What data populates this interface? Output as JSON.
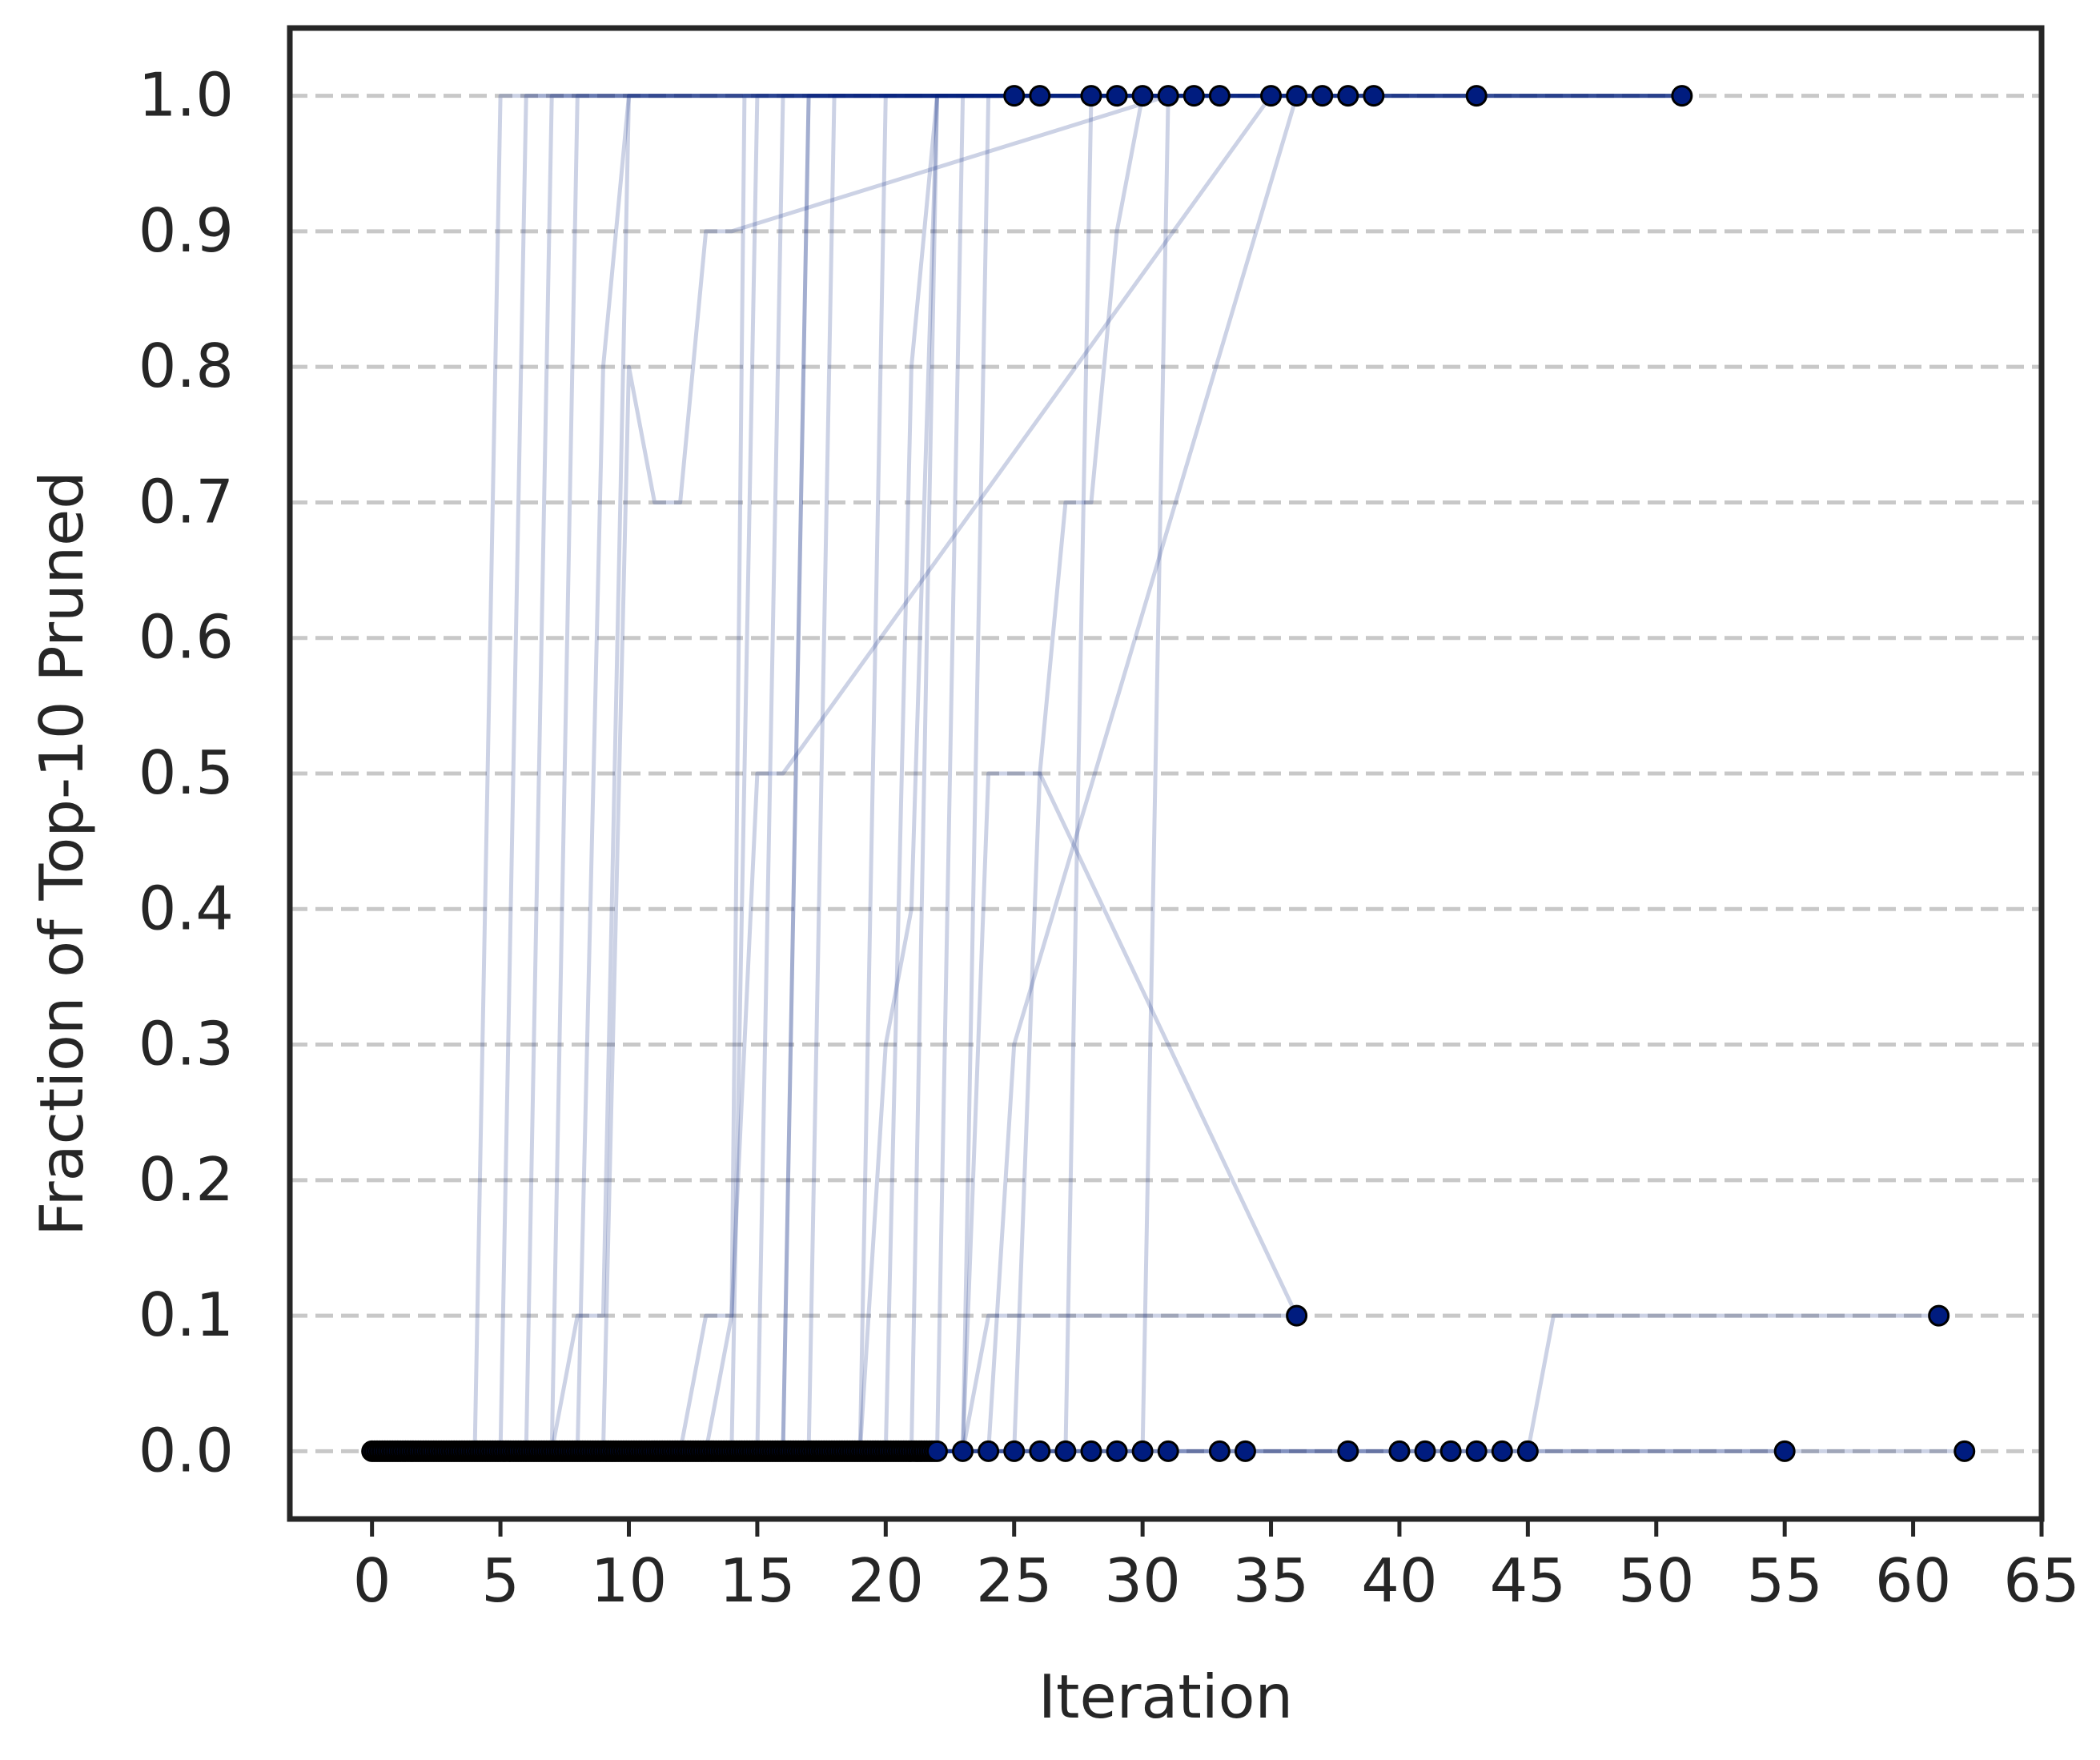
{
  "chart_data": {
    "type": "line",
    "title": "",
    "xlabel": "Iteration",
    "ylabel": "Fraction of Top-10 Pruned",
    "xlim": [
      -3.2,
      65.0
    ],
    "ylim": [
      -0.05,
      1.05
    ],
    "xticks": [
      0,
      5,
      10,
      15,
      20,
      25,
      30,
      35,
      40,
      45,
      50,
      55,
      60,
      65
    ],
    "xtick_labels": [
      "0",
      "5",
      "10",
      "15",
      "20",
      "25",
      "30",
      "35",
      "40",
      "45",
      "50",
      "55",
      "60",
      "65"
    ],
    "yticks": [
      0.0,
      0.1,
      0.2,
      0.3,
      0.4,
      0.5,
      0.6,
      0.7,
      0.8,
      0.9,
      1.0
    ],
    "ytick_labels": [
      "0.0",
      "0.1",
      "0.2",
      "0.3",
      "0.4",
      "0.5",
      "0.6",
      "0.7",
      "0.8",
      "0.9",
      "1.0"
    ],
    "grid": "y-dashed",
    "legend": "none",
    "colors": {
      "line": "#001c7f",
      "grid": "#c8c8c8",
      "axis": "#262626",
      "marker_edge": "#000000"
    },
    "series": [
      {
        "x": [
          0,
          4,
          5,
          25
        ],
        "y": [
          0,
          0,
          1,
          1
        ]
      },
      {
        "x": [
          0,
          5,
          6,
          26
        ],
        "y": [
          0,
          0,
          1,
          1
        ]
      },
      {
        "x": [
          0,
          6,
          7,
          28
        ],
        "y": [
          0,
          0,
          1,
          1
        ]
      },
      {
        "x": [
          0,
          7,
          8,
          29
        ],
        "y": [
          0,
          0,
          1,
          1
        ]
      },
      {
        "x": [
          0,
          7,
          8,
          9,
          10,
          30
        ],
        "y": [
          0,
          0,
          0.1,
          0.1,
          1,
          1
        ]
      },
      {
        "x": [
          0,
          9,
          10,
          11,
          12,
          13,
          14,
          31
        ],
        "y": [
          0,
          0,
          0.8,
          0.7,
          0.7,
          0.9,
          0.9,
          1
        ]
      },
      {
        "x": [
          0,
          8,
          9,
          10,
          32
        ],
        "y": [
          0,
          0,
          0.8,
          1,
          1
        ]
      },
      {
        "x": [
          0,
          12,
          13,
          14,
          14.5,
          33
        ],
        "y": [
          0,
          0,
          0.1,
          0.1,
          1,
          1
        ]
      },
      {
        "x": [
          0,
          14,
          15,
          35
        ],
        "y": [
          0,
          0,
          1,
          1
        ]
      },
      {
        "x": [
          0,
          15,
          16,
          36
        ],
        "y": [
          0,
          0,
          1,
          1
        ]
      },
      {
        "x": [
          0,
          16,
          17,
          37
        ],
        "y": [
          0,
          0,
          1,
          1
        ]
      },
      {
        "x": [
          0,
          16,
          17,
          38
        ],
        "y": [
          0,
          0,
          1,
          1
        ]
      },
      {
        "x": [
          0,
          17,
          18,
          39
        ],
        "y": [
          0,
          0,
          1,
          1
        ]
      },
      {
        "x": [
          0,
          19,
          20,
          43
        ],
        "y": [
          0,
          0,
          1,
          1
        ]
      },
      {
        "x": [
          0,
          20,
          21,
          22,
          51
        ],
        "y": [
          0,
          0,
          0.8,
          1,
          1
        ]
      },
      {
        "x": [
          0,
          21,
          22,
          23,
          51
        ],
        "y": [
          0,
          0,
          1,
          1,
          1
        ]
      },
      {
        "x": [
          0,
          22,
          23,
          24,
          51
        ],
        "y": [
          0,
          0,
          1,
          1,
          1
        ]
      },
      {
        "x": [
          0,
          23,
          24,
          51
        ],
        "y": [
          0,
          0,
          1,
          1
        ]
      },
      {
        "x": [
          0,
          27,
          28,
          30,
          51
        ],
        "y": [
          0,
          0,
          1,
          1,
          1
        ]
      },
      {
        "x": [
          0,
          30,
          31,
          51
        ],
        "y": [
          0,
          0,
          1,
          1
        ]
      },
      {
        "x": [
          0,
          13,
          14,
          15,
          16,
          35
        ],
        "y": [
          0,
          0,
          0.1,
          0.5,
          0.5,
          1
        ]
      },
      {
        "x": [
          0,
          19,
          20,
          21,
          22,
          51
        ],
        "y": [
          0,
          0,
          0.3,
          0.4,
          1,
          1
        ]
      },
      {
        "x": [
          0,
          23,
          24,
          26,
          36
        ],
        "y": [
          0,
          0,
          0.5,
          0.5,
          0.1
        ]
      },
      {
        "x": [
          0,
          24,
          25,
          36
        ],
        "y": [
          0,
          0,
          0.3,
          1
        ]
      },
      {
        "x": [
          0,
          25,
          26,
          27,
          28,
          29,
          30,
          31
        ],
        "y": [
          0,
          0,
          0.5,
          0.7,
          0.7,
          0.9,
          1,
          1
        ]
      },
      {
        "x": [
          0,
          23,
          24,
          36
        ],
        "y": [
          0,
          0,
          0.1,
          0.1
        ]
      },
      {
        "x": [
          0,
          45,
          46,
          61
        ],
        "y": [
          0,
          0,
          0.1,
          0.1
        ]
      },
      {
        "x": [
          0,
          55
        ],
        "y": [
          0,
          0
        ]
      },
      {
        "x": [
          0,
          62
        ],
        "y": [
          0,
          0
        ]
      }
    ],
    "endpoints_top": {
      "x": [
        25,
        26,
        28,
        29,
        30,
        31,
        32,
        33,
        35,
        36,
        37,
        38,
        39,
        43,
        51
      ],
      "y": [
        1,
        1,
        1,
        1,
        1,
        1,
        1,
        1,
        1,
        1,
        1,
        1,
        1,
        1,
        1
      ]
    },
    "endpoints_mid": {
      "x": [
        36,
        61
      ],
      "y": [
        0.1,
        0.1
      ]
    },
    "endpoints_bottom": {
      "x": [
        0,
        0.1,
        0.2,
        0.3,
        0.4,
        0.5,
        0.6,
        0.7,
        0.8,
        0.9,
        1,
        1.1,
        1.2,
        1.3,
        1.4,
        1.5,
        1.6,
        1.7,
        1.8,
        1.9,
        2,
        2.1,
        2.2,
        2.3,
        2.4,
        2.5,
        2.6,
        2.7,
        2.8,
        2.9,
        3,
        3.1,
        3.2,
        3.3,
        3.4,
        3.5,
        3.6,
        3.7,
        3.8,
        3.9,
        4,
        4.1,
        4.2,
        4.3,
        4.4,
        4.5,
        4.6,
        4.7,
        4.8,
        4.9,
        5,
        5.1,
        5.2,
        5.3,
        5.4,
        5.5,
        5.6,
        5.7,
        5.8,
        5.9,
        6,
        6.1,
        6.2,
        6.3,
        6.4,
        6.5,
        6.6,
        6.7,
        6.8,
        6.9,
        7,
        7.1,
        7.2,
        7.3,
        7.4,
        7.5,
        7.6,
        7.7,
        7.8,
        7.9,
        8,
        8.1,
        8.2,
        8.3,
        8.4,
        8.5,
        8.6,
        8.7,
        8.8,
        8.9,
        9,
        9.1,
        9.2,
        9.3,
        9.4,
        9.5,
        9.6,
        9.7,
        9.8,
        9.9,
        10,
        10.1,
        10.2,
        10.3,
        10.4,
        10.5,
        10.6,
        10.7,
        10.8,
        10.9,
        11,
        11.1,
        11.2,
        11.3,
        11.4,
        11.5,
        11.6,
        11.7,
        11.8,
        11.9,
        12,
        12.1,
        12.2,
        12.3,
        12.4,
        12.5,
        12.6,
        12.7,
        12.8,
        12.9,
        13,
        13.1,
        13.2,
        13.3,
        13.4,
        13.5,
        13.6,
        13.7,
        13.8,
        13.9,
        14,
        14.1,
        14.2,
        14.3,
        14.4,
        14.5,
        14.6,
        14.7,
        14.8,
        14.9,
        15,
        15.1,
        15.2,
        15.3,
        15.4,
        15.5,
        15.6,
        15.7,
        15.8,
        15.9,
        16,
        16.1,
        16.2,
        16.3,
        16.4,
        16.5,
        16.6,
        16.7,
        16.8,
        16.9,
        17,
        17.1,
        17.2,
        17.3,
        17.4,
        17.5,
        17.6,
        17.7,
        17.8,
        17.9,
        18,
        18.1,
        18.2,
        18.3,
        18.4,
        18.5,
        18.6,
        18.7,
        18.8,
        18.9,
        19,
        19.1,
        19.2,
        19.3,
        19.4,
        19.5,
        19.6,
        19.7,
        19.8,
        19.9,
        20,
        20.1,
        20.2,
        20.3,
        20.4,
        20.5,
        20.6,
        20.7,
        20.8,
        20.9,
        21,
        21.1,
        21.2,
        21.3,
        21.4,
        21.5,
        21.6,
        21.7,
        21.8,
        21.9,
        22,
        23,
        24,
        25,
        26,
        27,
        28,
        29,
        30,
        31,
        33,
        34,
        38,
        40,
        41,
        42,
        43,
        44,
        45,
        55,
        62
      ],
      "y": "all 0"
    }
  }
}
